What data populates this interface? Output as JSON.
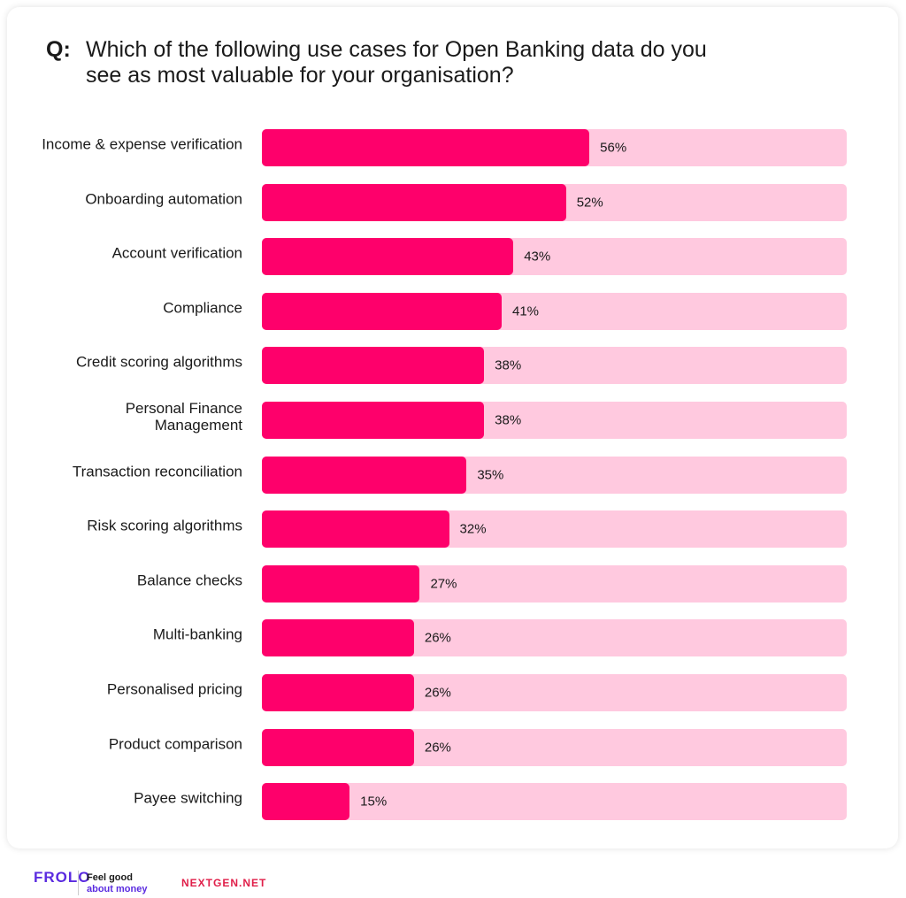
{
  "chart_data": {
    "type": "barh",
    "question_label": "Q:",
    "title": "Which of the following use cases for Open Banking data do you see as most valuable for your organisation?",
    "categories": [
      "Income & expense verification",
      "Onboarding automation",
      "Account verification",
      "Compliance",
      "Credit scoring algorithms",
      "Personal Finance Management",
      "Transaction reconciliation",
      "Risk scoring algorithms",
      "Balance checks",
      "Multi-banking",
      "Personalised pricing",
      "Product comparison",
      "Payee switching"
    ],
    "values": [
      56,
      52,
      43,
      41,
      38,
      38,
      35,
      32,
      27,
      26,
      26,
      26,
      15
    ],
    "value_labels": [
      "56%",
      "52%",
      "43%",
      "41%",
      "38%",
      "38%",
      "35%",
      "32%",
      "27%",
      "26%",
      "26%",
      "26%",
      "15%"
    ],
    "color": "#fe006b",
    "track_color": "#ffc9df",
    "xlim": [
      0,
      100
    ]
  },
  "footer": {
    "brand": "FROLO",
    "tagline": [
      "Feel good",
      "about money"
    ],
    "partner": "NEXTGEN.NET"
  }
}
